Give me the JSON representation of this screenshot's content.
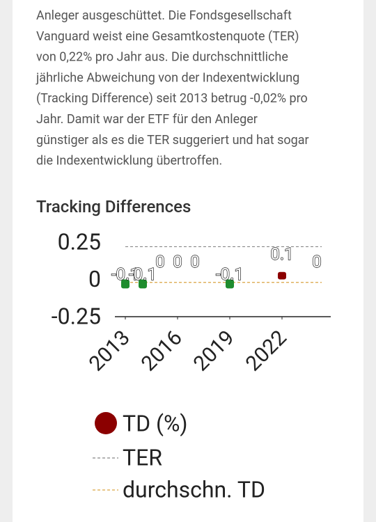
{
  "article": {
    "paragraph_lines": [
      "Anleger ausgeschüttet. Die Fondsgesellschaft",
      "Vanguard weist eine Gesamtkostenquote (TER)",
      "von 0,22% pro Jahr aus. Die durchschnittliche",
      "jährliche Abweichung von der Indexentwicklung",
      "(Tracking Difference) seit 2013 betrug -0,02% pro",
      "Jahr. Damit war der ETF für den Anleger",
      "günstiger als es die TER suggeriert und hat sogar",
      "die Indexentwicklung übertroffen."
    ]
  },
  "chart_data": {
    "type": "bar",
    "title": "Tracking Differences",
    "series": [
      {
        "name": "TD (%)",
        "color": "#8b0000",
        "negative_color": "#1e8c2e",
        "x": [
          2013,
          2014,
          2015,
          2016,
          2017,
          2019,
          2022,
          2024
        ],
        "values": [
          -0.06,
          -0.06,
          0,
          0,
          0,
          -0.06,
          0.05,
          0
        ],
        "value_labels": [
          "-0.1",
          "-0.1",
          "0",
          "0",
          "0",
          "-0.1",
          "0.1",
          "0"
        ]
      }
    ],
    "reference_lines": [
      {
        "name": "TER",
        "value": 0.22,
        "color": "#888888"
      },
      {
        "name": "durchschn. TD",
        "value": -0.02,
        "color": "#d9a441"
      }
    ],
    "xlim": [
      2012,
      2025
    ],
    "xticks": [
      2013,
      2016,
      2019,
      2022
    ],
    "ylim": [
      -0.25,
      0.25
    ],
    "yticks": [
      0.25,
      0,
      -0.25
    ]
  }
}
